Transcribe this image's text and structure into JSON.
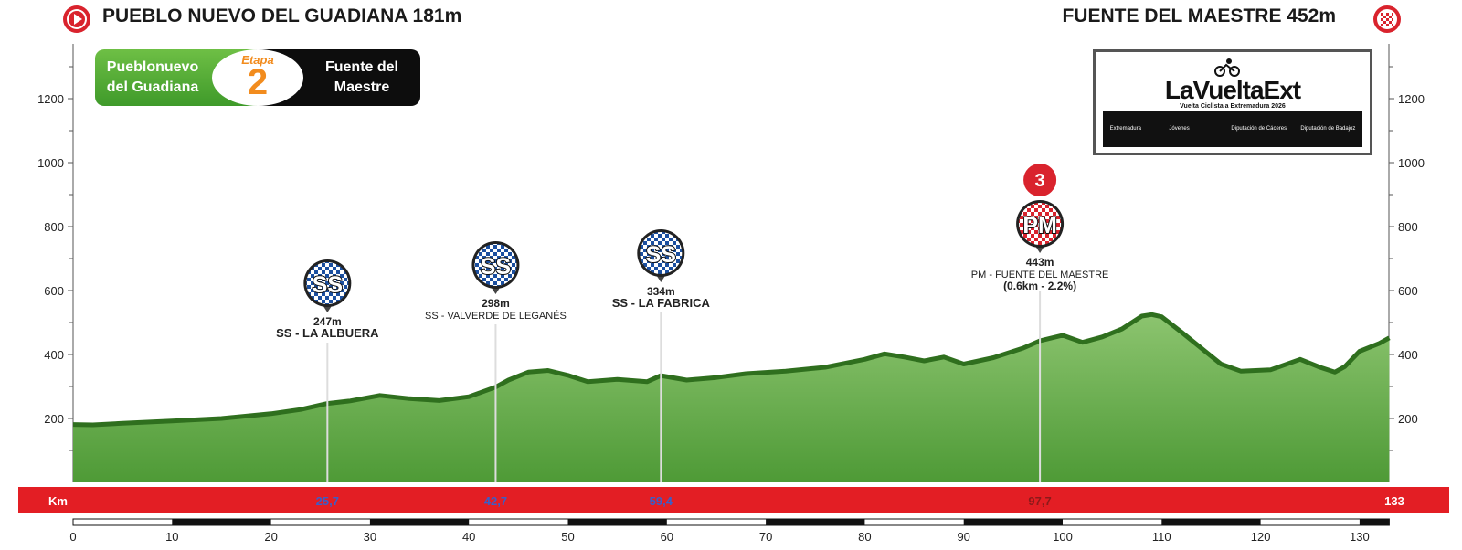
{
  "header": {
    "start_title": "PUEBLO NUEVO DEL GUADIANA 181m",
    "finish_title": "FUENTE DEL MAESTRE 452m",
    "start_icon": "play-circle-icon",
    "finish_icon": "checkered-flag-icon"
  },
  "stage_badge": {
    "start_line1": "Pueblonuevo",
    "start_line2": "del Guadiana",
    "etapa_label": "Etapa",
    "stage_number": "2",
    "finish_line1": "Fuente del",
    "finish_line2": "Maestre"
  },
  "logo": {
    "brand": "LaVueltaExt",
    "subtitle": "Vuelta Ciclista a Extremadura 2026",
    "sponsors": [
      "Extremadura",
      "",
      "Jóvenes",
      "",
      "",
      "Diputación de Cáceres",
      "Diputación de Badajoz"
    ]
  },
  "colors": {
    "profile_fill": "#5ea843",
    "profile_edge": "#2f6f1e",
    "km_bar": "#e31e24",
    "sprint_blue": "#1b4fa0",
    "climb_red": "#d9232d",
    "km_sprint_text": "#3a5fc8",
    "km_climb_text": "#8b1a1a"
  },
  "chart_data": {
    "type": "area",
    "title": "",
    "xlabel": "",
    "ylabel": "",
    "xlim": [
      0,
      133
    ],
    "ylim": [
      0,
      1350
    ],
    "x_ticks": [
      0,
      10,
      20,
      30,
      40,
      50,
      60,
      70,
      80,
      90,
      100,
      110,
      120,
      130
    ],
    "y_ticks": [
      200,
      400,
      600,
      800,
      1000,
      1200
    ],
    "km_label": "Km",
    "km_end_label": "133",
    "profile": {
      "x": [
        0,
        2,
        5,
        10,
        15,
        20,
        23,
        25.7,
        28,
        31,
        34,
        37,
        40,
        42.7,
        44,
        46,
        48,
        50,
        52,
        55,
        58,
        59.4,
        62,
        65,
        68,
        72,
        76,
        80,
        82,
        84,
        86,
        88,
        90,
        93,
        96,
        97.7,
        100,
        102,
        104,
        106,
        108,
        109,
        110,
        112,
        114,
        116,
        118,
        121,
        124,
        126,
        127.5,
        128.5,
        130,
        132,
        133
      ],
      "y": [
        181,
        180,
        185,
        192,
        200,
        215,
        228,
        247,
        255,
        272,
        262,
        256,
        268,
        298,
        320,
        345,
        350,
        335,
        315,
        322,
        315,
        334,
        320,
        328,
        340,
        348,
        360,
        385,
        402,
        392,
        380,
        392,
        370,
        390,
        420,
        443,
        460,
        438,
        455,
        480,
        520,
        525,
        518,
        470,
        420,
        370,
        348,
        352,
        385,
        360,
        345,
        362,
        410,
        435,
        452
      ]
    },
    "points": [
      {
        "type": "SS",
        "km": 25.7,
        "km_label": "25,7",
        "elevation": 247,
        "elev_label": "247m",
        "name": "SS - LA ALBUERA",
        "extra": ""
      },
      {
        "type": "SS",
        "km": 42.7,
        "km_label": "42,7",
        "elevation": 298,
        "elev_label": "298m",
        "name": "SS - VALVERDE DE LEGANÉS",
        "extra": ""
      },
      {
        "type": "SS",
        "km": 59.4,
        "km_label": "59,4",
        "elevation": 334,
        "elev_label": "334m",
        "name": "SS - LA FABRICA",
        "extra": ""
      },
      {
        "type": "PM",
        "km": 97.7,
        "km_label": "97,7",
        "elevation": 443,
        "elev_label": "443m",
        "name": "PM - FUENTE DEL MAESTRE",
        "extra": "(0.6km - 2.2%)",
        "category": "3"
      }
    ]
  }
}
